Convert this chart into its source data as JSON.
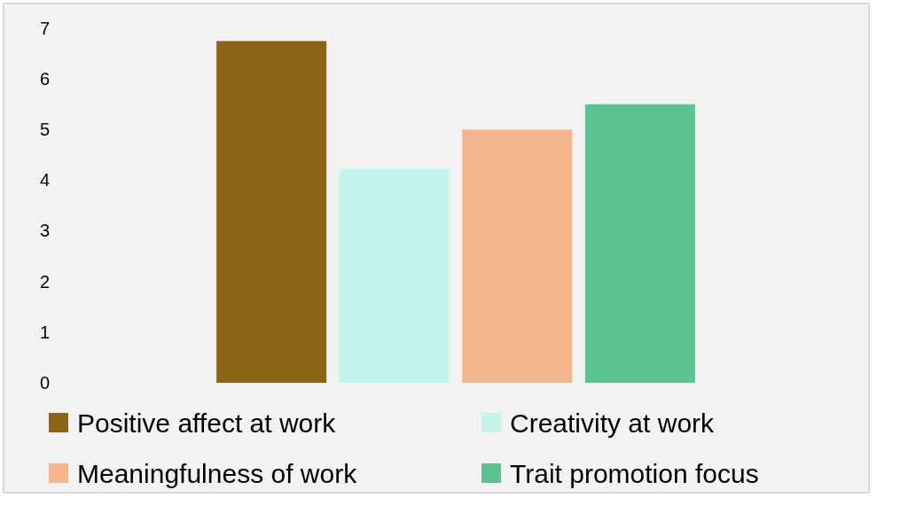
{
  "chart_data": {
    "type": "bar",
    "categories": [
      null
    ],
    "series": [
      {
        "name": "Positive affect at work",
        "color": "#8e6518",
        "values": [
          6.75
        ]
      },
      {
        "name": "Creativity at work",
        "color": "#c4f4ec",
        "values": [
          4.23
        ]
      },
      {
        "name": "Meaningfulness of work",
        "color": "#f4b58a",
        "values": [
          5.0
        ]
      },
      {
        "name": "Trait promotion focus",
        "color": "#5ac391",
        "values": [
          5.5
        ]
      }
    ],
    "ylim": [
      0,
      7
    ],
    "yticks": [
      0,
      1,
      2,
      3,
      4,
      5,
      6,
      7
    ],
    "grid": false,
    "legend": "bottom"
  }
}
